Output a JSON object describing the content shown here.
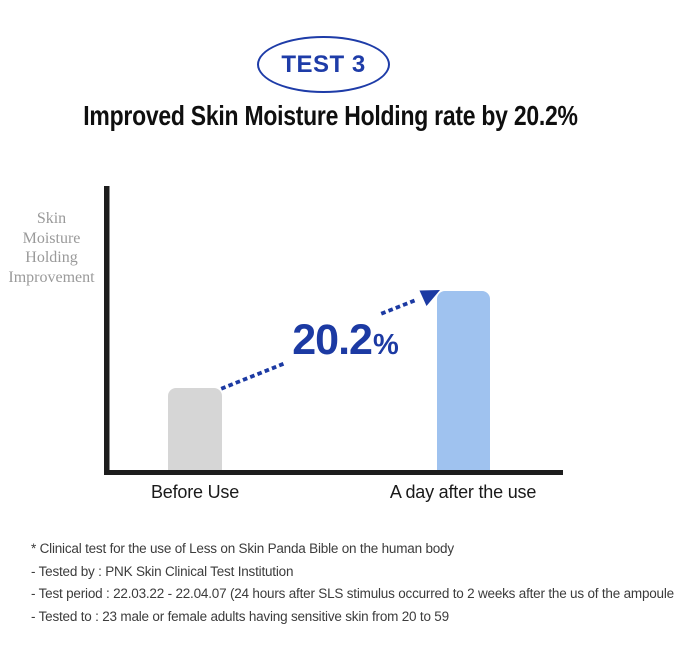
{
  "badge": {
    "label": "TEST 3"
  },
  "title": "Improved Skin Moisture Holding rate by 20.2%",
  "chart_data": {
    "type": "bar",
    "title": "Improved Skin Moisture Holding rate by 20.2%",
    "ylabel": "Skin Moisture Holding Improvement",
    "ylabel_lines": [
      "Skin",
      "Moisture",
      "Holding",
      "Improvement"
    ],
    "categories": [
      "Before Use",
      "A day after the use"
    ],
    "values": [
      0.29,
      0.63
    ],
    "ylim": [
      0,
      1
    ],
    "grid": false,
    "legend": false,
    "series_colors": [
      "#d6d6d6",
      "#9fc2ef"
    ],
    "axis_color": "#1d1d1d",
    "accent_color": "#1c3aa3",
    "annotation": {
      "value": "20.2",
      "unit": "%"
    }
  },
  "footnotes": [
    "* Clinical test for the use of Less on Skin Panda Bible on the human body",
    "- Tested by : PNK Skin Clinical Test Institution",
    "- Test period : 22.03.22 - 22.04.07 (24 hours after SLS stimulus occurred to 2 weeks after the us of the ampoule",
    "- Tested to : 23 male or female adults having sensitive skin from 20 to 59"
  ]
}
